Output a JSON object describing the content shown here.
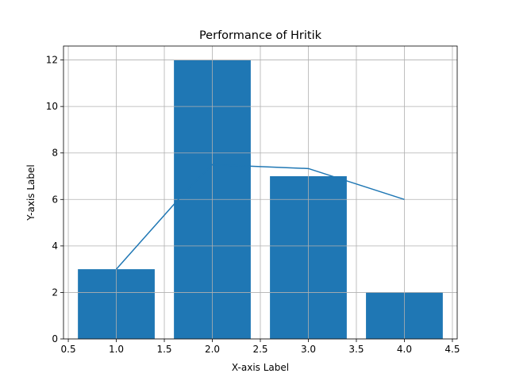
{
  "chart_data": {
    "type": "bar",
    "title": "Performance of Hritik",
    "xlabel": "X-axis Label",
    "ylabel": "Y-axis Label",
    "xlim": [
      0.45,
      4.55
    ],
    "ylim": [
      0,
      12.6
    ],
    "xticks": [
      "0.5",
      "1.0",
      "1.5",
      "2.0",
      "2.5",
      "3.0",
      "3.5",
      "4.0",
      "4.5"
    ],
    "yticks": [
      "0",
      "2",
      "4",
      "6",
      "8",
      "10",
      "12"
    ],
    "grid": true,
    "bar_width": 0.8,
    "bars": {
      "x": [
        1,
        2,
        3,
        4
      ],
      "values": [
        3,
        12,
        7,
        2
      ],
      "color": "#1f77b4"
    },
    "line": {
      "x": [
        1,
        1.667,
        2,
        3,
        4
      ],
      "values": [
        3,
        6.1,
        7.5,
        7.33,
        6
      ],
      "color": "#1f77b4"
    }
  }
}
